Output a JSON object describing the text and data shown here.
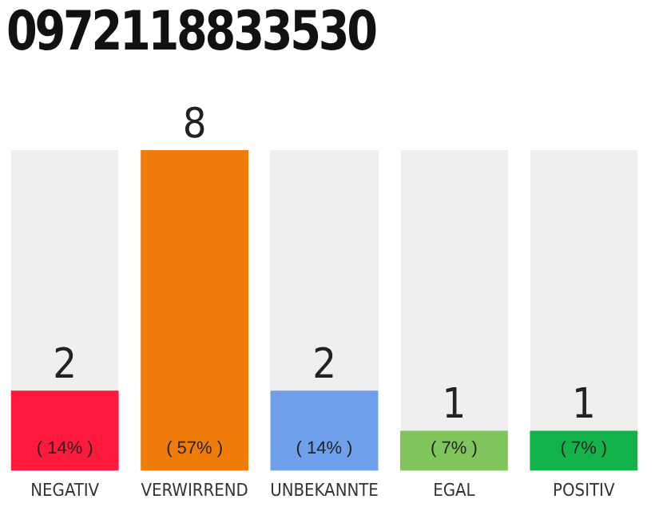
{
  "chart_data": {
    "type": "bar",
    "title": "0972118833530",
    "categories": [
      "NEGATIV",
      "VERWIRREND",
      "UNBEKANNTE",
      "EGAL",
      "POSITIV"
    ],
    "values": [
      2,
      8,
      2,
      1,
      1
    ],
    "colors": [
      "#ff1a3d",
      "#f07d0a",
      "#6ea0ec",
      "#80c55c",
      "#13b24a"
    ],
    "data_labels": true,
    "annotations": [
      {
        "text": "( 14% )",
        "x": "NEGATIV",
        "y": 0
      },
      {
        "text": "( 57% )",
        "x": "VERWIRREND",
        "y": 0
      },
      {
        "text": "( 14% )",
        "x": "UNBEKANNTE",
        "y": 0
      },
      {
        "text": "( 7% )",
        "x": "EGAL",
        "y": 0
      },
      {
        "text": "( 7% )",
        "x": "POSITIV",
        "y": 0
      }
    ],
    "grid": false,
    "legend": false
  }
}
